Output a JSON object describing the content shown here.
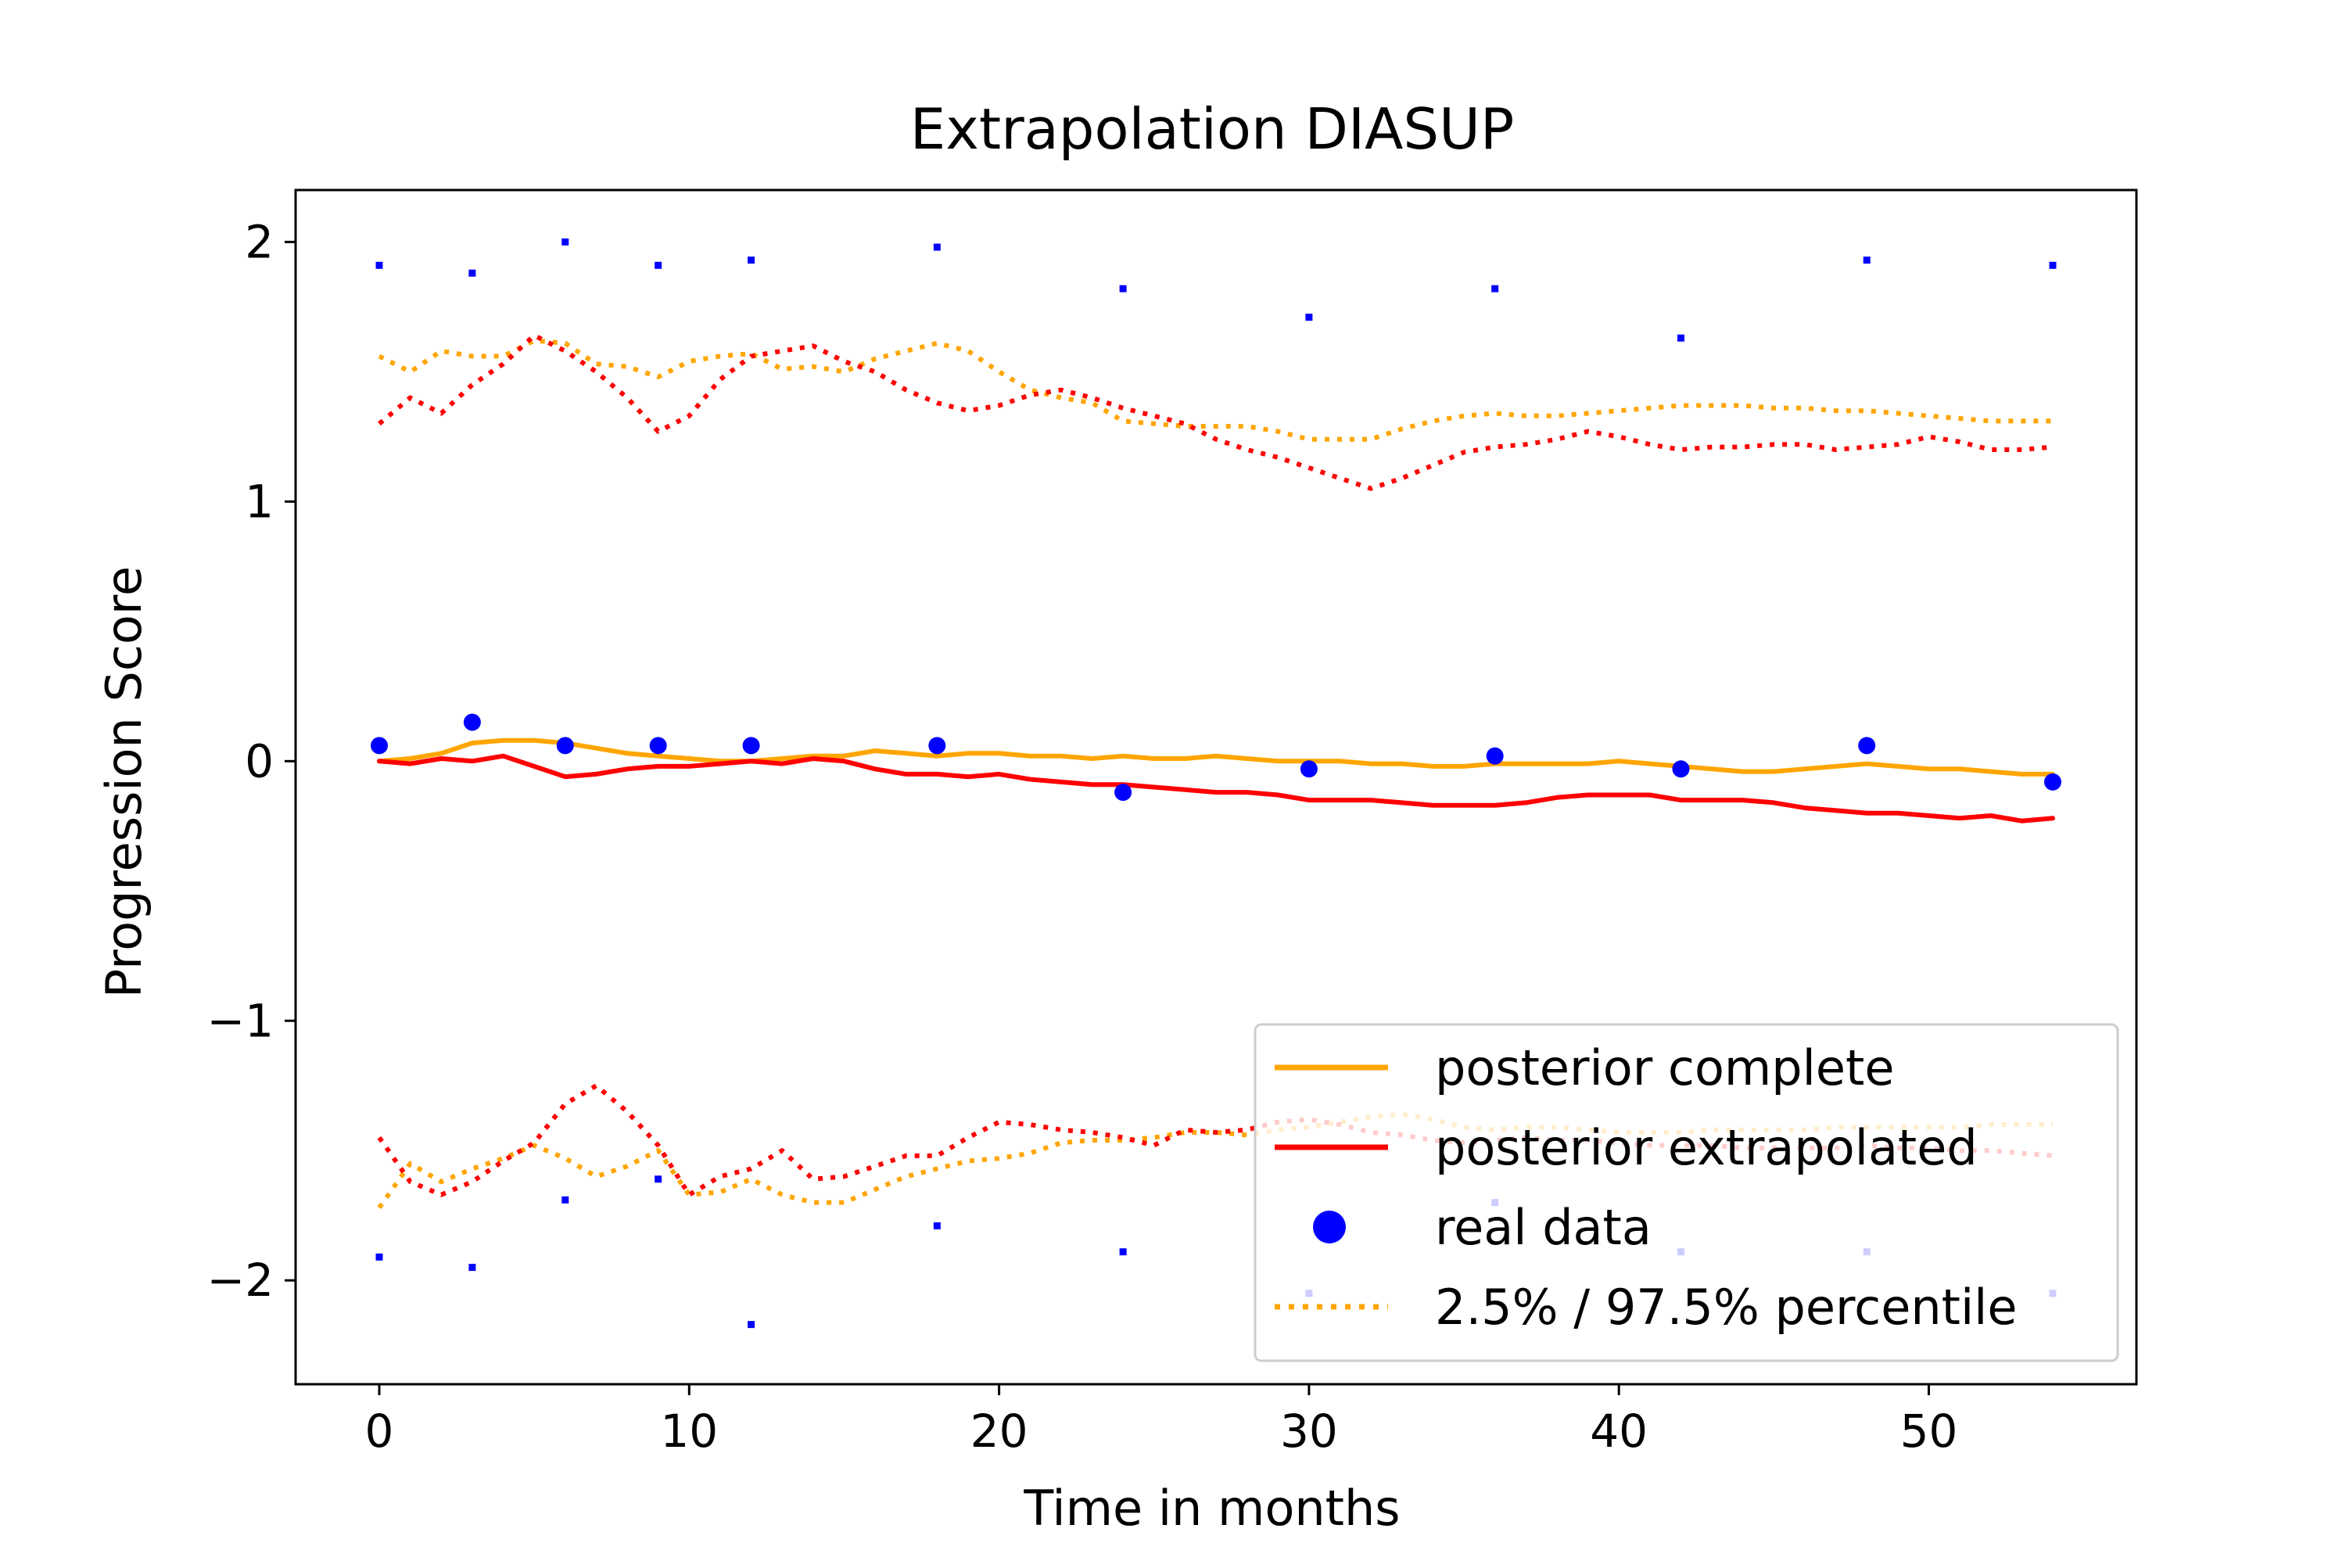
{
  "chart_data": {
    "type": "line",
    "title": "Extrapolation DIASUP",
    "xlabel": "Time in months",
    "ylabel": "Progression Score",
    "xlim": [
      -2.7,
      56.7
    ],
    "ylim": [
      -2.4,
      2.2
    ],
    "xticks": [
      0,
      10,
      20,
      30,
      40,
      50
    ],
    "yticks": [
      2,
      1,
      0,
      -1,
      -2
    ],
    "ytick_labels": [
      "2",
      "1",
      "0",
      "−1",
      "−2"
    ],
    "legend_position": "lower right",
    "grid": false,
    "colors": {
      "posterior_complete": "#ffa500",
      "posterior_extrapolated": "#ff0000",
      "real_data": "#0000ff"
    },
    "legend": [
      {
        "label": "posterior complete",
        "style": "solid",
        "color": "#ffa500"
      },
      {
        "label": "posterior extrapolated",
        "style": "solid",
        "color": "#ff0000"
      },
      {
        "label": "real data",
        "style": "marker",
        "color": "#0000ff"
      },
      {
        "label": "2.5% / 97.5% percentile",
        "style": "dotted",
        "color": "#ffa500"
      }
    ],
    "series": [
      {
        "name": "posterior complete",
        "kind": "mean",
        "color": "#ffa500",
        "style": "solid",
        "x": [
          0,
          1,
          2,
          3,
          4,
          5,
          6,
          7,
          8,
          9,
          10,
          11,
          12,
          13,
          14,
          15,
          16,
          17,
          18,
          19,
          20,
          21,
          22,
          23,
          24,
          25,
          26,
          27,
          28,
          29,
          30,
          31,
          32,
          33,
          34,
          35,
          36,
          37,
          38,
          39,
          40,
          41,
          42,
          43,
          44,
          45,
          46,
          47,
          48,
          49,
          50,
          51,
          52,
          53,
          54
        ],
        "y": [
          0.0,
          0.01,
          0.03,
          0.07,
          0.08,
          0.08,
          0.07,
          0.05,
          0.03,
          0.02,
          0.01,
          0.0,
          0.0,
          0.01,
          0.02,
          0.02,
          0.04,
          0.03,
          0.02,
          0.03,
          0.03,
          0.02,
          0.02,
          0.01,
          0.02,
          0.01,
          0.01,
          0.02,
          0.01,
          0.0,
          0.0,
          0.0,
          -0.01,
          -0.01,
          -0.02,
          -0.02,
          -0.01,
          -0.01,
          -0.01,
          -0.01,
          0.0,
          -0.01,
          -0.02,
          -0.03,
          -0.04,
          -0.04,
          -0.03,
          -0.02,
          -0.01,
          -0.02,
          -0.03,
          -0.03,
          -0.04,
          -0.05,
          -0.05
        ]
      },
      {
        "name": "posterior extrapolated",
        "kind": "mean",
        "color": "#ff0000",
        "style": "solid",
        "x": [
          0,
          1,
          2,
          3,
          4,
          5,
          6,
          7,
          8,
          9,
          10,
          11,
          12,
          13,
          14,
          15,
          16,
          17,
          18,
          19,
          20,
          21,
          22,
          23,
          24,
          25,
          26,
          27,
          28,
          29,
          30,
          31,
          32,
          33,
          34,
          35,
          36,
          37,
          38,
          39,
          40,
          41,
          42,
          43,
          44,
          45,
          46,
          47,
          48,
          49,
          50,
          51,
          52,
          53,
          54
        ],
        "y": [
          0.0,
          -0.01,
          0.01,
          0.0,
          0.02,
          -0.02,
          -0.06,
          -0.05,
          -0.03,
          -0.02,
          -0.02,
          -0.01,
          0.0,
          -0.01,
          0.01,
          0.0,
          -0.03,
          -0.05,
          -0.05,
          -0.06,
          -0.05,
          -0.07,
          -0.08,
          -0.09,
          -0.09,
          -0.1,
          -0.11,
          -0.12,
          -0.12,
          -0.13,
          -0.15,
          -0.15,
          -0.15,
          -0.16,
          -0.17,
          -0.17,
          -0.17,
          -0.16,
          -0.14,
          -0.13,
          -0.13,
          -0.13,
          -0.15,
          -0.15,
          -0.15,
          -0.16,
          -0.18,
          -0.19,
          -0.2,
          -0.2,
          -0.21,
          -0.22,
          -0.21,
          -0.23,
          -0.22
        ]
      },
      {
        "name": "2.5% / 97.5% percentile",
        "kind": "upper",
        "color": "#ffa500",
        "style": "dotted",
        "x": [
          0,
          1,
          2,
          3,
          4,
          5,
          6,
          7,
          8,
          9,
          10,
          11,
          12,
          13,
          14,
          15,
          16,
          17,
          18,
          19,
          20,
          21,
          22,
          23,
          24,
          25,
          26,
          27,
          28,
          29,
          30,
          31,
          32,
          33,
          34,
          35,
          36,
          37,
          38,
          39,
          40,
          41,
          42,
          43,
          44,
          45,
          46,
          47,
          48,
          49,
          50,
          51,
          52,
          53,
          54
        ],
        "y": [
          1.56,
          1.5,
          1.58,
          1.56,
          1.56,
          1.62,
          1.61,
          1.53,
          1.52,
          1.48,
          1.54,
          1.56,
          1.57,
          1.51,
          1.52,
          1.5,
          1.55,
          1.58,
          1.61,
          1.58,
          1.5,
          1.43,
          1.4,
          1.38,
          1.31,
          1.3,
          1.29,
          1.29,
          1.29,
          1.27,
          1.24,
          1.24,
          1.24,
          1.28,
          1.31,
          1.33,
          1.34,
          1.33,
          1.33,
          1.34,
          1.35,
          1.36,
          1.37,
          1.37,
          1.37,
          1.36,
          1.36,
          1.35,
          1.35,
          1.34,
          1.33,
          1.32,
          1.31,
          1.31,
          1.31
        ]
      },
      {
        "name": "2.5% / 97.5% percentile",
        "kind": "lower",
        "color": "#ffa500",
        "style": "dotted",
        "x": [
          0,
          1,
          2,
          3,
          4,
          5,
          6,
          7,
          8,
          9,
          10,
          11,
          12,
          13,
          14,
          15,
          16,
          17,
          18,
          19,
          20,
          21,
          22,
          23,
          24,
          25,
          26,
          27,
          28,
          29,
          30,
          31,
          32,
          33,
          34,
          35,
          36,
          37,
          38,
          39,
          40,
          41,
          42,
          43,
          44,
          45,
          46,
          47,
          48,
          49,
          50,
          51,
          52,
          53,
          54
        ],
        "y": [
          -1.72,
          -1.55,
          -1.62,
          -1.57,
          -1.53,
          -1.48,
          -1.53,
          -1.6,
          -1.56,
          -1.5,
          -1.67,
          -1.66,
          -1.61,
          -1.67,
          -1.7,
          -1.7,
          -1.65,
          -1.6,
          -1.57,
          -1.54,
          -1.53,
          -1.51,
          -1.47,
          -1.46,
          -1.46,
          -1.45,
          -1.43,
          -1.43,
          -1.44,
          -1.42,
          -1.41,
          -1.39,
          -1.37,
          -1.36,
          -1.38,
          -1.41,
          -1.42,
          -1.41,
          -1.41,
          -1.42,
          -1.43,
          -1.43,
          -1.43,
          -1.42,
          -1.42,
          -1.42,
          -1.42,
          -1.41,
          -1.41,
          -1.41,
          -1.41,
          -1.41,
          -1.4,
          -1.4,
          -1.4
        ]
      },
      {
        "name": "",
        "kind": "upper",
        "color": "#ff0000",
        "style": "dotted",
        "x": [
          0,
          1,
          2,
          3,
          4,
          5,
          6,
          7,
          8,
          9,
          10,
          11,
          12,
          13,
          14,
          15,
          16,
          17,
          18,
          19,
          20,
          21,
          22,
          23,
          24,
          25,
          26,
          27,
          28,
          29,
          30,
          31,
          32,
          33,
          34,
          35,
          36,
          37,
          38,
          39,
          40,
          41,
          42,
          43,
          44,
          45,
          46,
          47,
          48,
          49,
          50,
          51,
          52,
          53,
          54
        ],
        "y": [
          1.3,
          1.4,
          1.34,
          1.45,
          1.53,
          1.64,
          1.58,
          1.5,
          1.4,
          1.27,
          1.33,
          1.47,
          1.56,
          1.58,
          1.6,
          1.54,
          1.5,
          1.43,
          1.38,
          1.35,
          1.37,
          1.41,
          1.43,
          1.4,
          1.36,
          1.33,
          1.3,
          1.24,
          1.2,
          1.17,
          1.13,
          1.09,
          1.05,
          1.09,
          1.14,
          1.19,
          1.21,
          1.22,
          1.24,
          1.27,
          1.25,
          1.22,
          1.2,
          1.21,
          1.21,
          1.22,
          1.22,
          1.2,
          1.21,
          1.22,
          1.25,
          1.23,
          1.2,
          1.2,
          1.21
        ]
      },
      {
        "name": "",
        "kind": "lower",
        "color": "#ff0000",
        "style": "dotted",
        "x": [
          0,
          1,
          2,
          3,
          4,
          5,
          6,
          7,
          8,
          9,
          10,
          11,
          12,
          13,
          14,
          15,
          16,
          17,
          18,
          19,
          20,
          21,
          22,
          23,
          24,
          25,
          26,
          27,
          28,
          29,
          30,
          31,
          32,
          33,
          34,
          35,
          36,
          37,
          38,
          39,
          40,
          41,
          42,
          43,
          44,
          45,
          46,
          47,
          48,
          49,
          50,
          51,
          52,
          53,
          54
        ],
        "y": [
          -1.45,
          -1.62,
          -1.67,
          -1.62,
          -1.54,
          -1.47,
          -1.32,
          -1.25,
          -1.35,
          -1.48,
          -1.67,
          -1.6,
          -1.57,
          -1.5,
          -1.61,
          -1.6,
          -1.56,
          -1.52,
          -1.52,
          -1.45,
          -1.39,
          -1.4,
          -1.42,
          -1.43,
          -1.45,
          -1.48,
          -1.42,
          -1.43,
          -1.42,
          -1.39,
          -1.38,
          -1.4,
          -1.43,
          -1.44,
          -1.46,
          -1.47,
          -1.46,
          -1.45,
          -1.46,
          -1.46,
          -1.47,
          -1.48,
          -1.48,
          -1.48,
          -1.49,
          -1.49,
          -1.49,
          -1.49,
          -1.48,
          -1.49,
          -1.49,
          -1.5,
          -1.5,
          -1.51,
          -1.52
        ]
      },
      {
        "name": "real data",
        "kind": "mean_points",
        "color": "#0000ff",
        "style": "marker",
        "x": [
          0,
          3,
          6,
          9,
          12,
          18,
          24,
          30,
          36,
          42,
          48,
          54
        ],
        "y": [
          0.06,
          0.15,
          0.06,
          0.06,
          0.06,
          0.06,
          -0.12,
          -0.03,
          0.02,
          -0.03,
          0.06,
          -0.08
        ]
      },
      {
        "name": "",
        "kind": "upper_points",
        "color": "#0000ff",
        "style": "small-marker",
        "x": [
          0,
          3,
          6,
          9,
          12,
          18,
          24,
          30,
          36,
          42,
          48,
          54
        ],
        "y": [
          1.91,
          1.88,
          2.0,
          1.91,
          1.93,
          1.98,
          1.82,
          1.71,
          1.82,
          1.63,
          1.93,
          1.91
        ]
      },
      {
        "name": "",
        "kind": "lower_points",
        "color": "#0000ff",
        "style": "small-marker",
        "x": [
          0,
          3,
          6,
          9,
          12,
          18,
          24,
          30,
          36,
          42,
          48,
          54
        ],
        "y": [
          -1.91,
          -1.95,
          -1.69,
          -1.61,
          -2.17,
          -1.79,
          -1.89,
          -2.05,
          -1.7,
          -1.89,
          -1.89,
          -2.05
        ]
      }
    ]
  }
}
